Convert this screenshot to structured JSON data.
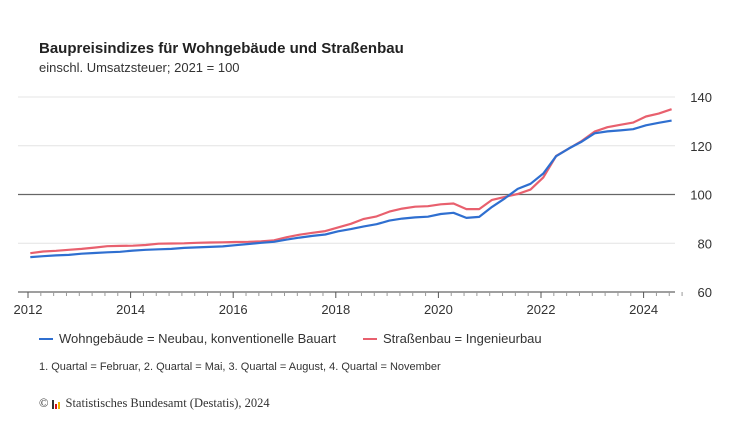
{
  "chart_data": {
    "type": "line",
    "title": "Baupreisindizes für Wohngebäude und Straßenbau",
    "subtitle": "einschl. Umsatzsteuer; 2021 = 100",
    "x_start": "2012 Q1",
    "x_frequency": "quarterly",
    "x_ticks": [
      "2012",
      "2014",
      "2016",
      "2018",
      "2020",
      "2022",
      "2024"
    ],
    "y_ticks": [
      "60",
      "80",
      "100",
      "120",
      "140"
    ],
    "ylim": [
      60,
      140
    ],
    "reference_line": 100,
    "grid": true,
    "legend_position": "bottom",
    "series": [
      {
        "name": "Wohngebäude = Neubau, konventionelle Bauart",
        "color": "#2f6fd0",
        "values": [
          74.3,
          74.7,
          75.0,
          75.2,
          75.7,
          76.0,
          76.3,
          76.5,
          77.0,
          77.3,
          77.5,
          77.7,
          78.1,
          78.3,
          78.5,
          78.7,
          79.2,
          79.7,
          80.2,
          80.6,
          81.5,
          82.3,
          83.0,
          83.6,
          84.9,
          85.8,
          86.9,
          87.8,
          89.3,
          90.1,
          90.6,
          90.9,
          92.0,
          92.5,
          90.4,
          90.8,
          94.9,
          98.4,
          102.3,
          104.4,
          108.6,
          115.7,
          118.9,
          121.7,
          125.1,
          125.9,
          126.3,
          126.8,
          128.4,
          129.4,
          130.3
        ]
      },
      {
        "name": "Straßenbau = Ingenieurbau",
        "color": "#e8606e",
        "values": [
          75.9,
          76.6,
          76.9,
          77.3,
          77.7,
          78.2,
          78.8,
          78.9,
          79.0,
          79.3,
          79.8,
          79.9,
          80.0,
          80.2,
          80.3,
          80.4,
          80.5,
          80.6,
          80.8,
          81.2,
          82.5,
          83.5,
          84.3,
          85.0,
          86.5,
          88.0,
          90.0,
          91.0,
          93.0,
          94.2,
          95.0,
          95.2,
          96.0,
          96.3,
          94.0,
          94.0,
          97.8,
          99.0,
          100.2,
          102.0,
          107.0,
          115.8,
          118.9,
          122.0,
          125.8,
          127.6,
          128.6,
          129.5,
          132.0,
          133.2,
          135.0
        ]
      }
    ]
  },
  "footnote": "1. Quartal = Februar, 2. Quartal = Mai, 3. Quartal = August, 4. Quartal = November",
  "source": "Statistisches Bundesamt (Destatis), 2024",
  "copyright_symbol": "©"
}
